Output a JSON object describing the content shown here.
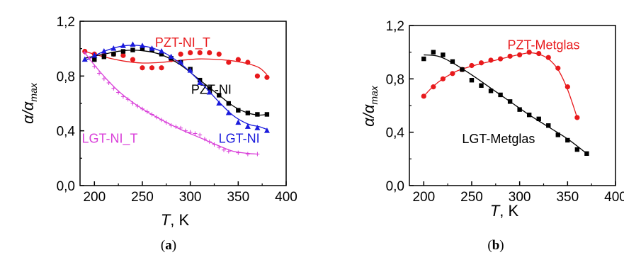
{
  "chart_data": [
    {
      "type": "scatter",
      "panel_label": "(a)",
      "panel_letter": "a",
      "xlabel_italic": "T",
      "xlabel_unit": ", K",
      "ylabel_base": "α/α",
      "ylabel_sub": "max",
      "xlim": [
        185,
        400
      ],
      "ylim": [
        0.0,
        1.2
      ],
      "x_ticks": [
        {
          "v": 200,
          "t": "200"
        },
        {
          "v": 250,
          "t": "250"
        },
        {
          "v": 300,
          "t": "300"
        },
        {
          "v": 350,
          "t": "350"
        },
        {
          "v": 400,
          "t": "400"
        }
      ],
      "y_ticks": [
        {
          "v": 0.0,
          "t": "0,0"
        },
        {
          "v": 0.4,
          "t": "0,4"
        },
        {
          "v": 0.8,
          "t": "0,8"
        },
        {
          "v": 1.2,
          "t": "1,2"
        }
      ],
      "grid": false,
      "series": [
        {
          "name": "PZT-NI_T",
          "color": "#e8191c",
          "marker": "circle",
          "label_x": 292,
          "label_y": 1.045,
          "points": [
            [
              190,
              0.98
            ],
            [
              200,
              0.96
            ],
            [
              210,
              0.95
            ],
            [
              220,
              0.96
            ],
            [
              230,
              0.95
            ],
            [
              240,
              0.92
            ],
            [
              250,
              0.86
            ],
            [
              260,
              0.86
            ],
            [
              270,
              0.86
            ],
            [
              280,
              0.92
            ],
            [
              290,
              0.96
            ],
            [
              300,
              0.97
            ],
            [
              310,
              0.97
            ],
            [
              320,
              0.97
            ],
            [
              330,
              0.96
            ],
            [
              340,
              0.9
            ],
            [
              350,
              0.92
            ],
            [
              360,
              0.9
            ],
            [
              370,
              0.8
            ],
            [
              380,
              0.79
            ]
          ],
          "curve": [
            [
              190,
              0.98
            ],
            [
              210,
              0.94
            ],
            [
              230,
              0.91
            ],
            [
              250,
              0.895
            ],
            [
              270,
              0.9
            ],
            [
              290,
              0.915
            ],
            [
              310,
              0.925
            ],
            [
              330,
              0.92
            ],
            [
              345,
              0.91
            ],
            [
              360,
              0.89
            ],
            [
              372,
              0.86
            ],
            [
              380,
              0.81
            ]
          ]
        },
        {
          "name": "PZT-NI",
          "color": "#000000",
          "marker": "square",
          "label_x": 322,
          "label_y": 0.7,
          "points": [
            [
              200,
              0.92
            ],
            [
              210,
              0.94
            ],
            [
              220,
              0.96
            ],
            [
              230,
              0.98
            ],
            [
              240,
              0.99
            ],
            [
              250,
              1.0
            ],
            [
              260,
              0.99
            ],
            [
              270,
              0.96
            ],
            [
              280,
              0.93
            ],
            [
              290,
              0.9
            ],
            [
              300,
              0.85
            ],
            [
              310,
              0.77
            ],
            [
              320,
              0.71
            ],
            [
              330,
              0.66
            ],
            [
              340,
              0.6
            ],
            [
              350,
              0.55
            ],
            [
              360,
              0.53
            ],
            [
              370,
              0.52
            ],
            [
              380,
              0.52
            ]
          ],
          "curve": [
            [
              190,
              0.93
            ],
            [
              210,
              0.96
            ],
            [
              230,
              0.985
            ],
            [
              250,
              0.985
            ],
            [
              270,
              0.955
            ],
            [
              290,
              0.88
            ],
            [
              310,
              0.77
            ],
            [
              330,
              0.66
            ],
            [
              345,
              0.58
            ],
            [
              360,
              0.53
            ],
            [
              372,
              0.515
            ],
            [
              380,
              0.52
            ]
          ]
        },
        {
          "name": "LGT-NI",
          "color": "#1a1adc",
          "marker": "triangle",
          "label_x": 351,
          "label_y": 0.345,
          "points": [
            [
              190,
              0.92
            ],
            [
              200,
              0.95
            ],
            [
              210,
              0.98
            ],
            [
              220,
              1.0
            ],
            [
              230,
              1.02
            ],
            [
              240,
              1.03
            ],
            [
              250,
              1.02
            ],
            [
              260,
              1.0
            ],
            [
              270,
              0.98
            ],
            [
              280,
              0.94
            ],
            [
              290,
              0.9
            ],
            [
              300,
              0.84
            ],
            [
              310,
              0.75
            ],
            [
              320,
              0.68
            ],
            [
              330,
              0.6
            ],
            [
              340,
              0.53
            ],
            [
              350,
              0.46
            ],
            [
              360,
              0.43
            ],
            [
              370,
              0.42
            ],
            [
              380,
              0.4
            ]
          ],
          "curve": [
            [
              190,
              0.91
            ],
            [
              210,
              0.98
            ],
            [
              230,
              1.02
            ],
            [
              250,
              1.02
            ],
            [
              270,
              0.98
            ],
            [
              290,
              0.89
            ],
            [
              310,
              0.76
            ],
            [
              330,
              0.61
            ],
            [
              345,
              0.51
            ],
            [
              360,
              0.45
            ],
            [
              372,
              0.43
            ],
            [
              380,
              0.41
            ]
          ]
        },
        {
          "name": "LGT-NI_T",
          "color": "#d93fd9",
          "marker": "plus",
          "label_x": 216,
          "label_y": 0.345,
          "points": [
            [
              190,
              0.97
            ],
            [
              195,
              0.93
            ],
            [
              200,
              0.87
            ],
            [
              205,
              0.82
            ],
            [
              210,
              0.78
            ],
            [
              215,
              0.75
            ],
            [
              220,
              0.71
            ],
            [
              225,
              0.68
            ],
            [
              230,
              0.65
            ],
            [
              235,
              0.63
            ],
            [
              240,
              0.6
            ],
            [
              245,
              0.58
            ],
            [
              250,
              0.56
            ],
            [
              255,
              0.54
            ],
            [
              260,
              0.52
            ],
            [
              265,
              0.5
            ],
            [
              270,
              0.48
            ],
            [
              275,
              0.46
            ],
            [
              280,
              0.44
            ],
            [
              285,
              0.43
            ],
            [
              290,
              0.42
            ],
            [
              295,
              0.4
            ],
            [
              300,
              0.39
            ],
            [
              305,
              0.38
            ],
            [
              310,
              0.37
            ],
            [
              315,
              0.34
            ],
            [
              320,
              0.32
            ],
            [
              325,
              0.3
            ],
            [
              330,
              0.28
            ],
            [
              335,
              0.26
            ],
            [
              340,
              0.25
            ],
            [
              350,
              0.24
            ],
            [
              360,
              0.23
            ],
            [
              370,
              0.23
            ]
          ],
          "curve": [
            [
              190,
              0.97
            ],
            [
              200,
              0.88
            ],
            [
              215,
              0.76
            ],
            [
              230,
              0.66
            ],
            [
              250,
              0.56
            ],
            [
              270,
              0.48
            ],
            [
              290,
              0.41
            ],
            [
              310,
              0.35
            ],
            [
              330,
              0.29
            ],
            [
              345,
              0.25
            ],
            [
              360,
              0.235
            ],
            [
              370,
              0.23
            ]
          ]
        }
      ]
    },
    {
      "type": "scatter",
      "panel_label": "(b)",
      "panel_letter": "b",
      "xlabel_italic": "T",
      "xlabel_unit": ", K",
      "ylabel_base": "α/α",
      "ylabel_sub": "max",
      "xlim": [
        185,
        400
      ],
      "ylim": [
        0.0,
        1.2
      ],
      "x_ticks": [
        {
          "v": 200,
          "t": "200"
        },
        {
          "v": 250,
          "t": "250"
        },
        {
          "v": 300,
          "t": "300"
        },
        {
          "v": 350,
          "t": "350"
        },
        {
          "v": 400,
          "t": "400"
        }
      ],
      "y_ticks": [
        {
          "v": 0.0,
          "t": "0,0"
        },
        {
          "v": 0.4,
          "t": "0,4"
        },
        {
          "v": 0.8,
          "t": "0,8"
        },
        {
          "v": 1.2,
          "t": "1,2"
        }
      ],
      "grid": false,
      "series": [
        {
          "name": "PZT-Metglas",
          "color": "#e8191c",
          "marker": "circle",
          "label_x": 325,
          "label_y": 1.055,
          "points": [
            [
              200,
              0.67
            ],
            [
              210,
              0.74
            ],
            [
              220,
              0.8
            ],
            [
              230,
              0.84
            ],
            [
              240,
              0.87
            ],
            [
              250,
              0.9
            ],
            [
              260,
              0.92
            ],
            [
              270,
              0.94
            ],
            [
              280,
              0.95
            ],
            [
              290,
              0.97
            ],
            [
              300,
              0.98
            ],
            [
              310,
              1.0
            ],
            [
              320,
              0.99
            ],
            [
              330,
              0.96
            ],
            [
              340,
              0.88
            ],
            [
              350,
              0.74
            ],
            [
              360,
              0.51
            ]
          ],
          "curve": [
            [
              200,
              0.67
            ],
            [
              210,
              0.745
            ],
            [
              220,
              0.8
            ],
            [
              235,
              0.86
            ],
            [
              255,
              0.905
            ],
            [
              275,
              0.94
            ],
            [
              295,
              0.975
            ],
            [
              310,
              0.995
            ],
            [
              320,
              0.985
            ],
            [
              330,
              0.95
            ],
            [
              340,
              0.87
            ],
            [
              350,
              0.72
            ],
            [
              360,
              0.51
            ]
          ]
        },
        {
          "name": "LGT-Metglas",
          "color": "#000000",
          "marker": "square",
          "label_x": 278,
          "label_y": 0.35,
          "points": [
            [
              200,
              0.95
            ],
            [
              210,
              1.0
            ],
            [
              220,
              0.98
            ],
            [
              230,
              0.93
            ],
            [
              240,
              0.87
            ],
            [
              250,
              0.79
            ],
            [
              260,
              0.75
            ],
            [
              270,
              0.71
            ],
            [
              280,
              0.68
            ],
            [
              290,
              0.63
            ],
            [
              300,
              0.57
            ],
            [
              310,
              0.53
            ],
            [
              320,
              0.5
            ],
            [
              330,
              0.45
            ],
            [
              340,
              0.38
            ],
            [
              350,
              0.34
            ],
            [
              360,
              0.27
            ],
            [
              370,
              0.24
            ]
          ],
          "curve": [
            [
              200,
              0.98
            ],
            [
              215,
              0.97
            ],
            [
              230,
              0.92
            ],
            [
              250,
              0.83
            ],
            [
              270,
              0.73
            ],
            [
              290,
              0.63
            ],
            [
              310,
              0.53
            ],
            [
              330,
              0.44
            ],
            [
              350,
              0.35
            ],
            [
              370,
              0.24
            ]
          ]
        }
      ]
    }
  ]
}
